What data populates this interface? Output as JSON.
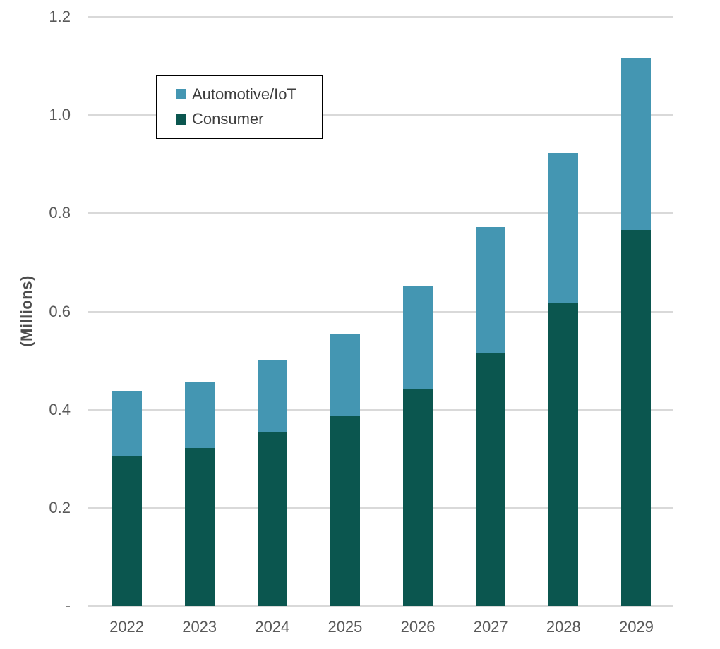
{
  "chart_data": {
    "type": "bar",
    "stacked": true,
    "title": "",
    "xlabel": "",
    "ylabel": "(Millions)",
    "ylim": [
      0,
      1.2
    ],
    "grid": true,
    "categories": [
      "2022",
      "2023",
      "2024",
      "2025",
      "2026",
      "2027",
      "2028",
      "2029"
    ],
    "series": [
      {
        "name": "Automotive/IoT",
        "color": "#4496B2",
        "values": [
          0.133,
          0.135,
          0.147,
          0.168,
          0.21,
          0.256,
          0.305,
          0.35
        ]
      },
      {
        "name": "Consumer",
        "color": "#0B564F",
        "values": [
          0.305,
          0.322,
          0.353,
          0.387,
          0.441,
          0.516,
          0.618,
          0.766
        ]
      }
    ],
    "stack_order_bottom_to_top": [
      "Consumer",
      "Automotive/IoT"
    ],
    "y_ticks": [
      {
        "value": 1.2,
        "label": "1.2"
      },
      {
        "value": 1.0,
        "label": "1.0"
      },
      {
        "value": 0.8,
        "label": "0.8"
      },
      {
        "value": 0.6,
        "label": "0.6"
      },
      {
        "value": 0.4,
        "label": "0.4"
      },
      {
        "value": 0.2,
        "label": "0.2"
      },
      {
        "value": 0.0,
        "label": "-"
      }
    ],
    "legend": {
      "position": "top-left",
      "bordered": true,
      "entries": [
        "Automotive/IoT",
        "Consumer"
      ]
    }
  },
  "colors": {
    "automotive_iot": "#4496B2",
    "consumer": "#0B564F",
    "gridline": "#D9D9D9",
    "axis_text": "#595959",
    "legend_border": "#000000",
    "background": "#FFFFFF"
  }
}
